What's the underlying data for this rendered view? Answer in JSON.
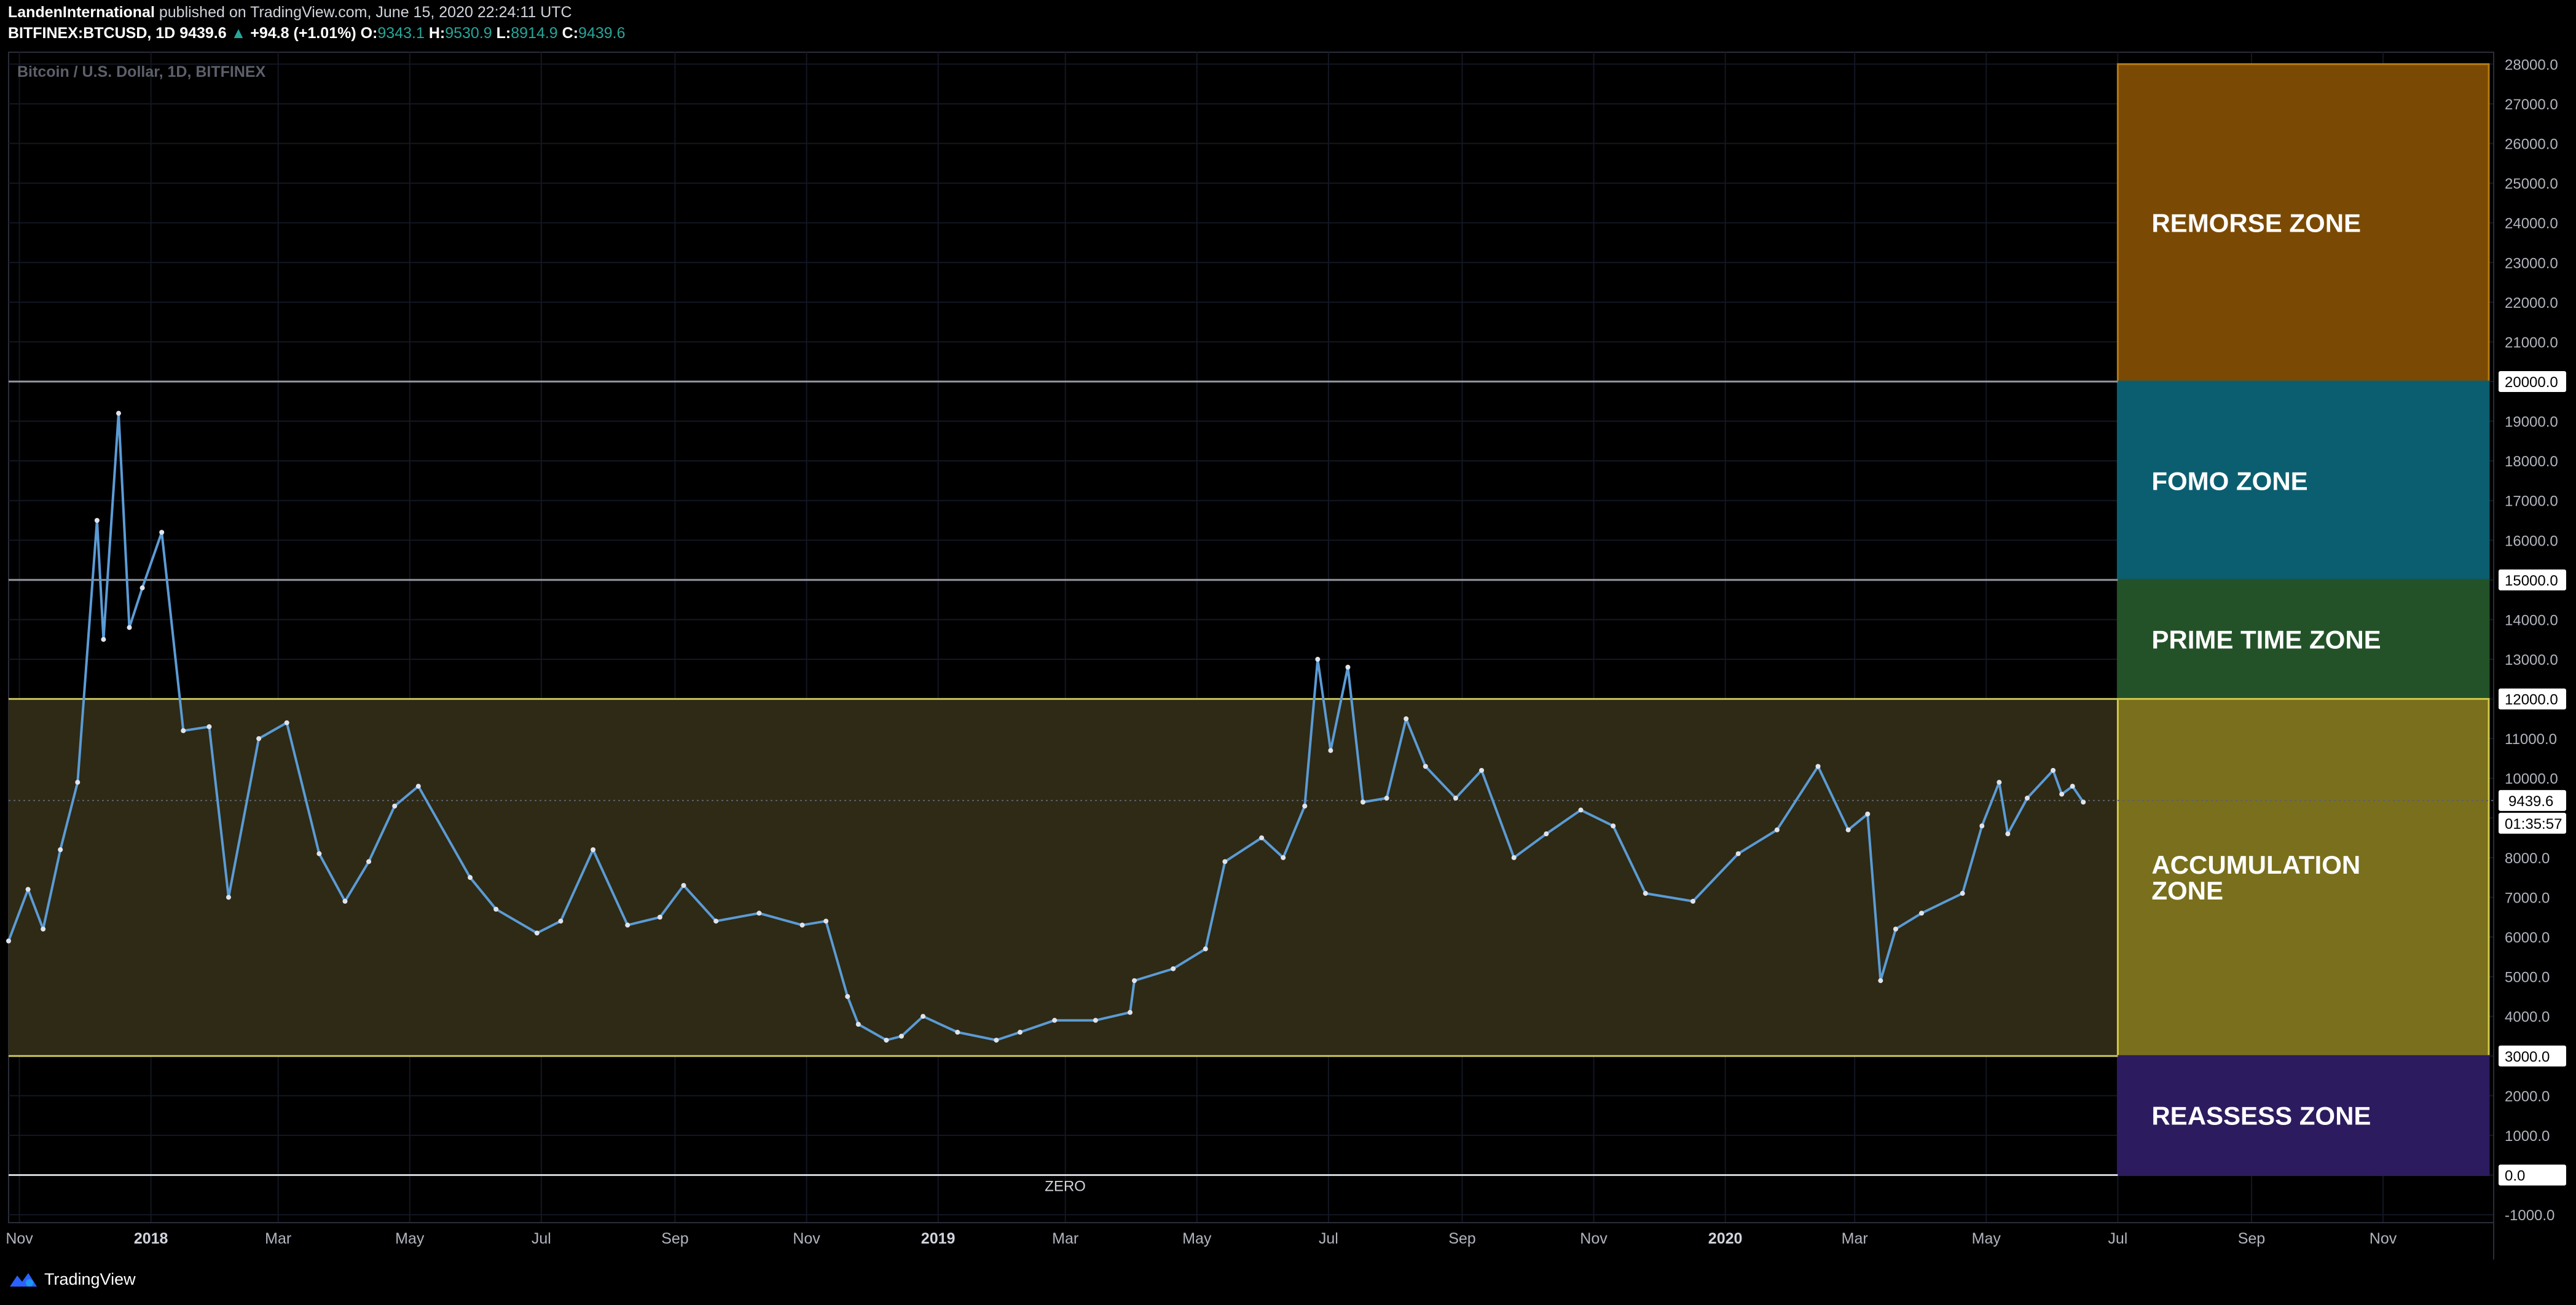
{
  "header": {
    "publisher": "LandenInternational",
    "published_text": "published on TradingView.com, June 15, 2020 22:24:11 UTC",
    "symbol": "BITFINEX:BTCUSD, 1D",
    "last": "9439.6",
    "change_arrow": "▲",
    "change": "+94.8 (+1.01%)",
    "o_label": "O:",
    "o_value": "9343.1",
    "h_label": "H:",
    "h_value": "9530.9",
    "l_label": "L:",
    "l_value": "8914.9",
    "c_label": "C:",
    "c_value": "9439.6"
  },
  "footer": {
    "brand": "TradingView"
  },
  "chart_data": {
    "type": "line",
    "title": "Bitcoin / U.S. Dollar, 1D, BITFINEX",
    "ylim": [
      -1200,
      28300
    ],
    "xlim": [
      "2017-10-27",
      "2020-12-20"
    ],
    "y_ticks": [
      -1000,
      1000,
      2000,
      4000,
      5000,
      6000,
      7000,
      8000,
      10000,
      11000,
      13000,
      14000,
      16000,
      17000,
      18000,
      19000,
      21000,
      22000,
      23000,
      24000,
      25000,
      26000,
      27000,
      28000
    ],
    "x_ticks": [
      {
        "label": "Nov",
        "date": "2017-11-01",
        "bold": false
      },
      {
        "label": "2018",
        "date": "2018-01-01",
        "bold": true
      },
      {
        "label": "Mar",
        "date": "2018-03-01",
        "bold": false
      },
      {
        "label": "May",
        "date": "2018-05-01",
        "bold": false
      },
      {
        "label": "Jul",
        "date": "2018-07-01",
        "bold": false
      },
      {
        "label": "Sep",
        "date": "2018-09-01",
        "bold": false
      },
      {
        "label": "Nov",
        "date": "2018-11-01",
        "bold": false
      },
      {
        "label": "2019",
        "date": "2019-01-01",
        "bold": true
      },
      {
        "label": "Mar",
        "date": "2019-03-01",
        "bold": false
      },
      {
        "label": "May",
        "date": "2019-05-01",
        "bold": false
      },
      {
        "label": "Jul",
        "date": "2019-07-01",
        "bold": false
      },
      {
        "label": "Sep",
        "date": "2019-09-01",
        "bold": false
      },
      {
        "label": "Nov",
        "date": "2019-11-01",
        "bold": false
      },
      {
        "label": "2020",
        "date": "2020-01-01",
        "bold": true
      },
      {
        "label": "Mar",
        "date": "2020-03-01",
        "bold": false
      },
      {
        "label": "May",
        "date": "2020-05-01",
        "bold": false
      },
      {
        "label": "Jul",
        "date": "2020-07-01",
        "bold": false
      },
      {
        "label": "Sep",
        "date": "2020-09-01",
        "bold": false
      },
      {
        "label": "Nov",
        "date": "2020-11-01",
        "bold": false
      }
    ],
    "level_lines": [
      {
        "value": 20000,
        "label": "20000.0",
        "color": "#9598a1"
      },
      {
        "value": 15000,
        "label": "15000.0",
        "color": "#9598a1"
      },
      {
        "value": 12000,
        "label": "12000.0",
        "color": "#c8c35a"
      },
      {
        "value": 3000,
        "label": "3000.0",
        "color": "#c8c35a"
      },
      {
        "value": 0,
        "label": "0.0",
        "color": "#d1d4dc",
        "annotation": "ZERO"
      }
    ],
    "current_price": {
      "value": 9439.6,
      "label": "9439.6",
      "countdown": "01:35:57"
    },
    "zones": [
      {
        "name": "REMORSE ZONE",
        "from": 20000,
        "to": 28000,
        "color": "#7a4a04",
        "border": "#b57a10"
      },
      {
        "name": "FOMO ZONE",
        "from": 15000,
        "to": 20000,
        "color": "#0b5e70",
        "border": "#0b5e70"
      },
      {
        "name": "PRIME TIME ZONE",
        "from": 12000,
        "to": 15000,
        "color": "#235228",
        "border": "#235228"
      },
      {
        "name": "ACCUMULATION ZONE",
        "lines": [
          "ACCUMULATION",
          "ZONE"
        ],
        "from": 3000,
        "to": 12000,
        "color": "#7a6f1c",
        "border": "#d1c84a"
      },
      {
        "name": "REASSESS ZONE",
        "from": 0,
        "to": 3000,
        "color": "#2c1b5e",
        "border": "#2c1b5e"
      }
    ],
    "zone_band": {
      "from": 3000,
      "to": 12000,
      "color": "#2e2a15"
    },
    "zone_box_start": "2020-07-01",
    "series": [
      {
        "color": "#5b9bd5",
        "x": [
          "2017-10-27",
          "2017-11-05",
          "2017-11-12",
          "2017-11-20",
          "2017-11-28",
          "2017-12-07",
          "2017-12-10",
          "2017-12-17",
          "2017-12-22",
          "2017-12-28",
          "2018-01-06",
          "2018-01-16",
          "2018-01-28",
          "2018-02-06",
          "2018-02-20",
          "2018-03-05",
          "2018-03-20",
          "2018-04-01",
          "2018-04-12",
          "2018-04-24",
          "2018-05-05",
          "2018-05-29",
          "2018-06-10",
          "2018-06-29",
          "2018-07-10",
          "2018-07-25",
          "2018-08-10",
          "2018-08-25",
          "2018-09-05",
          "2018-09-20",
          "2018-10-10",
          "2018-10-30",
          "2018-11-10",
          "2018-11-20",
          "2018-11-25",
          "2018-12-08",
          "2018-12-15",
          "2018-12-25",
          "2019-01-10",
          "2019-01-28",
          "2019-02-08",
          "2019-02-24",
          "2019-03-15",
          "2019-03-31",
          "2019-04-02",
          "2019-04-20",
          "2019-05-05",
          "2019-05-14",
          "2019-05-31",
          "2019-06-10",
          "2019-06-20",
          "2019-06-26",
          "2019-07-02",
          "2019-07-10",
          "2019-07-17",
          "2019-07-28",
          "2019-08-06",
          "2019-08-15",
          "2019-08-29",
          "2019-09-10",
          "2019-09-25",
          "2019-10-10",
          "2019-10-26",
          "2019-11-10",
          "2019-11-25",
          "2019-12-17",
          "2020-01-07",
          "2020-01-25",
          "2020-02-13",
          "2020-02-27",
          "2020-03-07",
          "2020-03-13",
          "2020-03-20",
          "2020-04-01",
          "2020-04-20",
          "2020-04-29",
          "2020-05-07",
          "2020-05-11",
          "2020-05-20",
          "2020-06-01",
          "2020-06-05",
          "2020-06-10",
          "2020-06-15"
        ],
        "values": [
          5900,
          7200,
          6200,
          8200,
          9900,
          16500,
          13500,
          19200,
          13800,
          14800,
          16200,
          11200,
          11300,
          7000,
          11000,
          11400,
          8100,
          6900,
          7900,
          9300,
          9800,
          7500,
          6700,
          6100,
          6400,
          8200,
          6300,
          6500,
          7300,
          6400,
          6600,
          6300,
          6400,
          4500,
          3800,
          3400,
          3500,
          4000,
          3600,
          3400,
          3600,
          3900,
          3900,
          4100,
          4900,
          5200,
          5700,
          7900,
          8500,
          8000,
          9300,
          13000,
          10700,
          12800,
          9400,
          9500,
          11500,
          10300,
          9500,
          10200,
          8000,
          8600,
          9200,
          8800,
          7100,
          6900,
          8100,
          8700,
          10300,
          8700,
          9100,
          4900,
          6200,
          6600,
          7100,
          8800,
          9900,
          8600,
          9500,
          10200,
          9600,
          9800,
          9400
        ]
      }
    ]
  }
}
